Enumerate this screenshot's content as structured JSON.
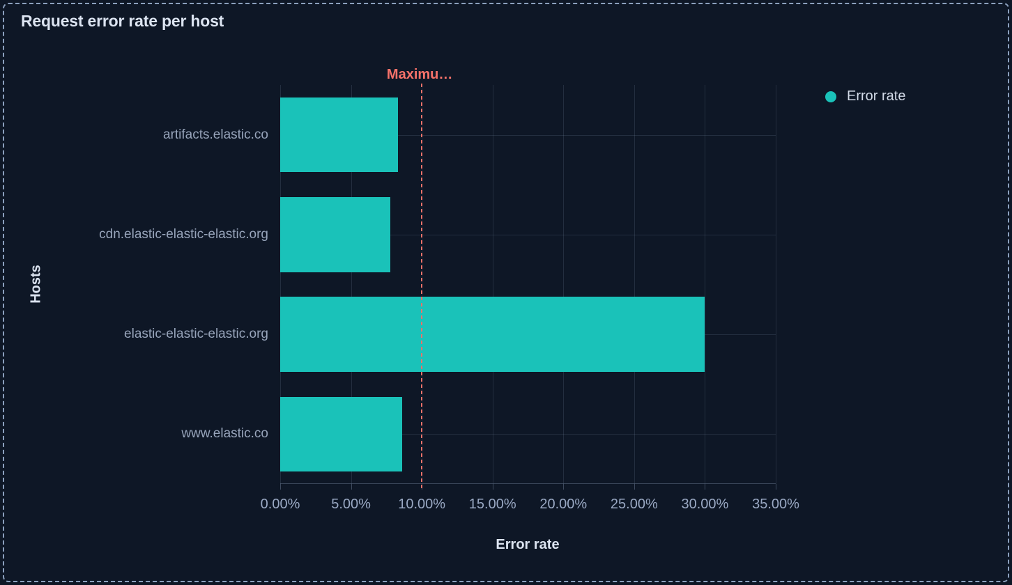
{
  "panel": {
    "title": "Request error rate per host"
  },
  "legend": {
    "items": [
      {
        "label": "Error rate",
        "color": "#1ac2b9"
      }
    ]
  },
  "chart_data": {
    "type": "bar",
    "orientation": "horizontal",
    "title": "Request error rate per host",
    "xlabel": "Error rate",
    "ylabel": "Hosts",
    "categories": [
      "artifacts.elastic.co",
      "cdn.elastic-elastic-elastic.org",
      "elastic-elastic-elastic.org",
      "www.elastic.co"
    ],
    "series": [
      {
        "name": "Error rate",
        "color": "#1ac2b9",
        "values": [
          8.3,
          7.8,
          30.0,
          8.6
        ]
      }
    ],
    "xlim": [
      0,
      35
    ],
    "x_tick_values": [
      0,
      5,
      10,
      15,
      20,
      25,
      30,
      35
    ],
    "x_tick_labels": [
      "0.00%",
      "5.00%",
      "10.00%",
      "15.00%",
      "20.00%",
      "25.00%",
      "30.00%",
      "35.00%"
    ],
    "grid": true,
    "legend_position": "top-right",
    "threshold": {
      "value": 10,
      "label": "Maximu…",
      "color": "#f6726a",
      "style": "dashed"
    }
  }
}
